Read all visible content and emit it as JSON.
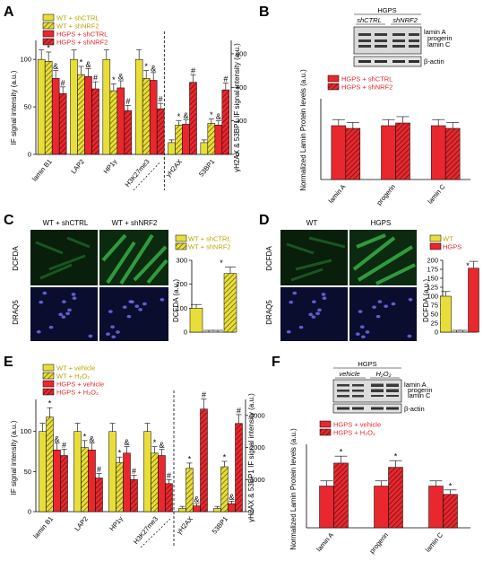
{
  "colors": {
    "wt": "#e8de3a",
    "hgps": "#e8282e",
    "micro_green": "#1e8f2b",
    "micro_blue": "#2a2e8c",
    "blot_bg": "#d9d9d9"
  },
  "panels": {
    "A": {
      "label": "A",
      "ylabel_left": "IF signal intensity (a.u.)",
      "ylabel_right": "γH2AX & 53BP1 IF signal intensity (a.u.)",
      "legend": [
        "WT + shCTRL",
        "WT + shNRF2",
        "HGPS + shCTRL",
        "HGPS + shNRF2"
      ],
      "yticks_left": [
        "0",
        "50",
        "100"
      ],
      "yticks_right": [
        "0",
        "200",
        "400",
        "600"
      ],
      "chart_data": {
        "type": "bar",
        "title": "",
        "categories": [
          "lamin B1",
          "LAP2",
          "HP1γ",
          "H3K27me3",
          "γH2AX",
          "53BP1"
        ],
        "series": [
          {
            "name": "WT + shCTRL",
            "values": [
              100,
              100,
              100,
              100,
              70,
              70
            ]
          },
          {
            "name": "WT + shNRF2",
            "values": [
              98,
              84,
              67,
              80,
              175,
              185
            ]
          },
          {
            "name": "HGPS + shCTRL",
            "values": [
              80,
              82,
              70,
              78,
              180,
              175
            ]
          },
          {
            "name": "HGPS + shNRF2",
            "values": [
              64,
              69,
              46,
              48,
              430,
              385
            ]
          }
        ],
        "ylim_left": [
          0,
          120
        ],
        "ylim_right": [
          0,
          680
        ]
      }
    },
    "B": {
      "label": "B",
      "blot_title": "HGPS",
      "blot_groups": [
        "shCTRL",
        "shNRF2"
      ],
      "blot_bands": [
        "lamin A",
        "progerin",
        "lamin C",
        "β-actin"
      ],
      "legend": [
        "HGPS + shCTRL",
        "HGPS + shNRF2"
      ],
      "ylabel": "Normalized Lamin Protein levels (a.u.)",
      "chart_data": {
        "type": "bar",
        "categories": [
          "lamin A",
          "progerin",
          "lamin C"
        ],
        "series": [
          {
            "name": "HGPS + shCTRL",
            "values": [
              100,
              100,
              100
            ]
          },
          {
            "name": "HGPS + shNRF2",
            "values": [
              95,
              105,
              95
            ]
          }
        ],
        "ylim": [
          0,
          150
        ]
      }
    },
    "C": {
      "label": "C",
      "col_labels": [
        "WT + shCTRL",
        "WT + shNRF2"
      ],
      "row_labels": [
        "DCFDA",
        "DRAQ5"
      ],
      "legend": [
        "WT + shCTRL",
        "WT + shNRF2"
      ],
      "ylabel": "DCFDA (a.u.)",
      "yticks": [
        "0",
        "100",
        "200",
        "300"
      ],
      "chart_data": {
        "type": "bar",
        "categories": [
          "WT + shCTRL",
          "WT + shNRF2"
        ],
        "values": [
          100,
          245
        ],
        "ylim": [
          0,
          300
        ]
      }
    },
    "D": {
      "label": "D",
      "col_labels": [
        "WT",
        "HGPS"
      ],
      "row_labels": [
        "DCFDA",
        "DRAQ5"
      ],
      "legend": [
        "WT",
        "HGPS"
      ],
      "ylabel": "DCFDA (a.u.)",
      "yticks": [
        "0",
        "25",
        "50",
        "75",
        "100",
        "125",
        "150",
        "175",
        "200"
      ],
      "chart_data": {
        "type": "bar",
        "categories": [
          "WT",
          "HGPS"
        ],
        "values": [
          100,
          178
        ],
        "ylim": [
          0,
          200
        ]
      }
    },
    "E": {
      "label": "E",
      "ylabel_left": "IF signal intensity (a.u.)",
      "ylabel_right": "γH2AX & 53BP1 IF signal intensity (a.u.)",
      "legend": [
        "WT + vehicle",
        "WT + H₂O₂",
        "HGPS + vehicle",
        "HGPS + H₂O₂"
      ],
      "yticks_left": [
        "0",
        "50",
        "100"
      ],
      "yticks_right": [
        "0",
        "1000",
        "2000",
        "3000"
      ],
      "chart_data": {
        "type": "bar",
        "categories": [
          "lamin B1",
          "LAP2",
          "HP1γ",
          "H3K27me3",
          "γH2AX",
          "53BP1"
        ],
        "series": [
          {
            "name": "WT + vehicle",
            "values": [
              100,
              100,
              100,
              100,
              100,
              100
            ]
          },
          {
            "name": "WT + H₂O₂",
            "values": [
              118,
              80,
              61,
              73,
              1350,
              1400
            ]
          },
          {
            "name": "HGPS + vehicle",
            "values": [
              77,
              77,
              73,
              70,
              180,
              250
            ]
          },
          {
            "name": "HGPS + H₂O₂",
            "values": [
              70,
              42,
              40,
              35,
              3200,
              2750
            ]
          }
        ],
        "ylim_left": [
          0,
          140
        ],
        "ylim_right": [
          0,
          3500
        ]
      }
    },
    "F": {
      "label": "F",
      "blot_title": "HGPS",
      "blot_groups": [
        "vehicle",
        "H₂O₂"
      ],
      "blot_bands": [
        "lamin A",
        "progerin",
        "lamin C",
        "β-actin"
      ],
      "legend": [
        "HGPS + vehicle",
        "HGPS + H₂O₂"
      ],
      "ylabel": "Normalized Lamin Protein levels (a.u.)",
      "chart_data": {
        "type": "bar",
        "categories": [
          "lamin A",
          "progerin",
          "lamin C"
        ],
        "series": [
          {
            "name": "HGPS + vehicle",
            "values": [
              100,
              100,
              100
            ]
          },
          {
            "name": "HGPS + H₂O₂",
            "values": [
              155,
              145,
              80
            ]
          }
        ],
        "ylim": [
          0,
          200
        ]
      }
    }
  },
  "markers": {
    "star": "*",
    "amp": "&",
    "hash": "#"
  }
}
